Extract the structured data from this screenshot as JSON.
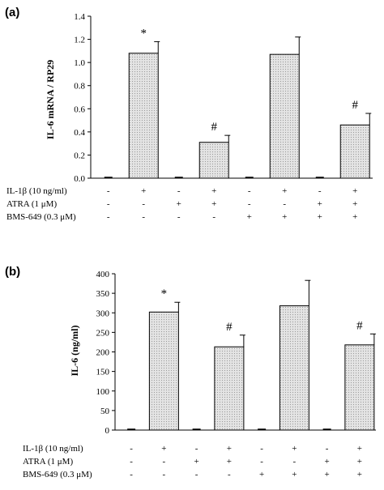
{
  "chart_data": [
    {
      "type": "bar",
      "panel": "(a)",
      "ylabel": "IL-6 mRNA / RP29",
      "ylim": [
        0,
        1.4
      ],
      "yticks": [
        "0.0",
        "0.2",
        "0.4",
        "0.6",
        "0.8",
        "1.0",
        "1.2",
        "1.4"
      ],
      "values": [
        0.01,
        1.08,
        0.01,
        0.31,
        0.01,
        1.07,
        0.01,
        0.46
      ],
      "errors": [
        0,
        0.1,
        0,
        0.06,
        0,
        0.15,
        0,
        0.1
      ],
      "annotations": [
        "",
        "*",
        "",
        "#",
        "",
        "",
        "",
        "#"
      ],
      "treatments": [
        {
          "label": "IL-1β (10 ng/ml)",
          "marks": [
            "-",
            "+",
            "-",
            "+",
            "-",
            "+",
            "-",
            "+"
          ]
        },
        {
          "label": "ATRA (1 μM)",
          "marks": [
            "-",
            "-",
            "+",
            "+",
            "-",
            "-",
            "+",
            "+"
          ]
        },
        {
          "label": "BMS-649 (0.3 μM)",
          "marks": [
            "-",
            "-",
            "-",
            "-",
            "+",
            "+",
            "+",
            "+"
          ]
        }
      ]
    },
    {
      "type": "bar",
      "panel": "(b)",
      "ylabel": "IL-6 (ng/ml)",
      "ylim": [
        0,
        400
      ],
      "yticks": [
        "0",
        "50",
        "100",
        "150",
        "200",
        "250",
        "300",
        "350",
        "400"
      ],
      "values": [
        3,
        302,
        3,
        213,
        3,
        318,
        3,
        218
      ],
      "errors": [
        0,
        25,
        0,
        30,
        0,
        65,
        0,
        28
      ],
      "annotations": [
        "",
        "*",
        "",
        "#",
        "",
        "",
        "",
        "#"
      ],
      "treatments": [
        {
          "label": "IL-1β (10 ng/ml)",
          "marks": [
            "-",
            "+",
            "-",
            "+",
            "-",
            "+",
            "-",
            "+"
          ]
        },
        {
          "label": "ATRA (1 μM)",
          "marks": [
            "-",
            "-",
            "+",
            "+",
            "-",
            "-",
            "+",
            "+"
          ]
        },
        {
          "label": "BMS-649 (0.3 μM)",
          "marks": [
            "-",
            "-",
            "-",
            "-",
            "+",
            "+",
            "+",
            "+"
          ]
        }
      ]
    }
  ]
}
